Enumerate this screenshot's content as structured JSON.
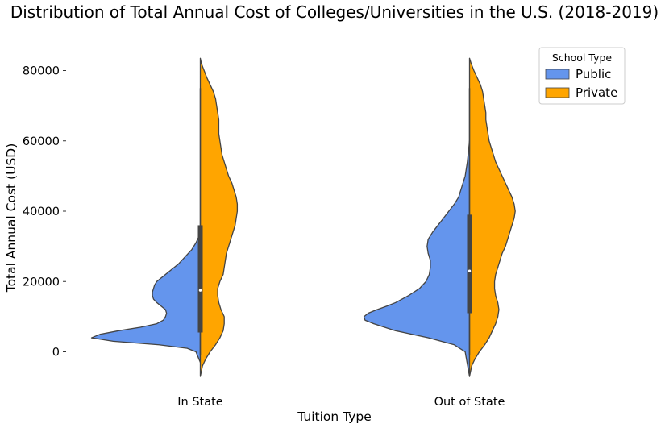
{
  "chart_data": {
    "type": "violin",
    "title": "Distribution of Total Annual Cost of Colleges/Universities in the U.S. (2018-2019)",
    "xlabel": "Tuition Type",
    "ylabel": "Total Annual Cost (USD)",
    "ylim": [
      -10000,
      85000
    ],
    "yticks": [
      0,
      20000,
      40000,
      60000,
      80000
    ],
    "ytick_labels": [
      "0",
      "20000",
      "40000",
      "60000",
      "80000"
    ],
    "categories": [
      "In State",
      "Out of State"
    ],
    "split": true,
    "grid": false,
    "legend": {
      "title": "School Type",
      "position": "top-right"
    },
    "series": [
      {
        "name": "Public",
        "color": "#6495ED",
        "side": "left"
      },
      {
        "name": "Private",
        "color": "#FFA500",
        "side": "right"
      }
    ],
    "densities": [
      {
        "category": "In State",
        "public": [
          [
            -3000,
            0
          ],
          [
            0,
            0.04
          ],
          [
            1000,
            0.12
          ],
          [
            2000,
            0.38
          ],
          [
            3000,
            0.8
          ],
          [
            4000,
            1.0
          ],
          [
            5000,
            0.92
          ],
          [
            6000,
            0.75
          ],
          [
            7000,
            0.55
          ],
          [
            8000,
            0.4
          ],
          [
            9000,
            0.34
          ],
          [
            10000,
            0.32
          ],
          [
            11000,
            0.31
          ],
          [
            12000,
            0.32
          ],
          [
            13000,
            0.36
          ],
          [
            14000,
            0.4
          ],
          [
            15000,
            0.43
          ],
          [
            16000,
            0.44
          ],
          [
            17000,
            0.44
          ],
          [
            18000,
            0.43
          ],
          [
            19000,
            0.42
          ],
          [
            20000,
            0.4
          ],
          [
            21000,
            0.36
          ],
          [
            22000,
            0.32
          ],
          [
            23000,
            0.28
          ],
          [
            24000,
            0.24
          ],
          [
            25000,
            0.2
          ],
          [
            26000,
            0.17
          ],
          [
            27000,
            0.14
          ],
          [
            28000,
            0.11
          ],
          [
            29000,
            0.08
          ],
          [
            30000,
            0.06
          ],
          [
            31000,
            0.04
          ],
          [
            32000,
            0.025
          ],
          [
            33000,
            0.01
          ],
          [
            34000,
            0
          ]
        ],
        "private": [
          [
            -7000,
            0
          ],
          [
            -4000,
            0.02
          ],
          [
            -2000,
            0.05
          ],
          [
            0,
            0.09
          ],
          [
            2000,
            0.14
          ],
          [
            4000,
            0.18
          ],
          [
            6000,
            0.21
          ],
          [
            8000,
            0.22
          ],
          [
            10000,
            0.22
          ],
          [
            12000,
            0.19
          ],
          [
            14000,
            0.17
          ],
          [
            16000,
            0.16
          ],
          [
            18000,
            0.16
          ],
          [
            20000,
            0.18
          ],
          [
            22000,
            0.21
          ],
          [
            24000,
            0.22
          ],
          [
            26000,
            0.23
          ],
          [
            28000,
            0.24
          ],
          [
            30000,
            0.26
          ],
          [
            32000,
            0.28
          ],
          [
            34000,
            0.3
          ],
          [
            36000,
            0.32
          ],
          [
            38000,
            0.33
          ],
          [
            40000,
            0.34
          ],
          [
            42000,
            0.34
          ],
          [
            44000,
            0.33
          ],
          [
            46000,
            0.31
          ],
          [
            48000,
            0.29
          ],
          [
            50000,
            0.26
          ],
          [
            52000,
            0.24
          ],
          [
            54000,
            0.22
          ],
          [
            56000,
            0.2
          ],
          [
            58000,
            0.19
          ],
          [
            60000,
            0.18
          ],
          [
            62000,
            0.17
          ],
          [
            64000,
            0.17
          ],
          [
            66000,
            0.17
          ],
          [
            68000,
            0.16
          ],
          [
            70000,
            0.15
          ],
          [
            72000,
            0.14
          ],
          [
            74000,
            0.12
          ],
          [
            76000,
            0.09
          ],
          [
            78000,
            0.06
          ],
          [
            80000,
            0.035
          ],
          [
            82000,
            0.01
          ],
          [
            83500,
            0
          ]
        ],
        "box": {
          "q1": 5500,
          "median": 17500,
          "q3": 36000,
          "whisker_low": -1000,
          "whisker_high": 75000
        }
      },
      {
        "category": "Out of State",
        "public": [
          [
            -7000,
            0
          ],
          [
            0,
            0.04
          ],
          [
            2000,
            0.14
          ],
          [
            4000,
            0.38
          ],
          [
            6000,
            0.68
          ],
          [
            8000,
            0.88
          ],
          [
            9000,
            0.96
          ],
          [
            10000,
            0.97
          ],
          [
            11000,
            0.93
          ],
          [
            12000,
            0.85
          ],
          [
            13000,
            0.76
          ],
          [
            14000,
            0.68
          ],
          [
            16000,
            0.56
          ],
          [
            18000,
            0.46
          ],
          [
            20000,
            0.4
          ],
          [
            22000,
            0.37
          ],
          [
            24000,
            0.36
          ],
          [
            26000,
            0.36
          ],
          [
            28000,
            0.38
          ],
          [
            30000,
            0.39
          ],
          [
            32000,
            0.38
          ],
          [
            34000,
            0.34
          ],
          [
            36000,
            0.29
          ],
          [
            38000,
            0.24
          ],
          [
            40000,
            0.19
          ],
          [
            42000,
            0.14
          ],
          [
            44000,
            0.1
          ],
          [
            46000,
            0.08
          ],
          [
            48000,
            0.06
          ],
          [
            50000,
            0.04
          ],
          [
            52000,
            0.03
          ],
          [
            54000,
            0.02
          ],
          [
            57000,
            0.01
          ],
          [
            60000,
            0
          ]
        ],
        "private": [
          [
            -7000,
            0
          ],
          [
            -4000,
            0.02
          ],
          [
            -2000,
            0.05
          ],
          [
            0,
            0.09
          ],
          [
            2000,
            0.14
          ],
          [
            4000,
            0.18
          ],
          [
            6000,
            0.21
          ],
          [
            8000,
            0.24
          ],
          [
            10000,
            0.26
          ],
          [
            12000,
            0.27
          ],
          [
            14000,
            0.26
          ],
          [
            16000,
            0.24
          ],
          [
            18000,
            0.23
          ],
          [
            20000,
            0.23
          ],
          [
            22000,
            0.24
          ],
          [
            24000,
            0.26
          ],
          [
            26000,
            0.28
          ],
          [
            28000,
            0.3
          ],
          [
            30000,
            0.33
          ],
          [
            32000,
            0.35
          ],
          [
            34000,
            0.37
          ],
          [
            36000,
            0.39
          ],
          [
            38000,
            0.41
          ],
          [
            40000,
            0.42
          ],
          [
            42000,
            0.41
          ],
          [
            44000,
            0.39
          ],
          [
            46000,
            0.36
          ],
          [
            48000,
            0.33
          ],
          [
            50000,
            0.3
          ],
          [
            52000,
            0.27
          ],
          [
            54000,
            0.24
          ],
          [
            56000,
            0.22
          ],
          [
            58000,
            0.2
          ],
          [
            60000,
            0.18
          ],
          [
            62000,
            0.17
          ],
          [
            64000,
            0.16
          ],
          [
            66000,
            0.15
          ],
          [
            68000,
            0.15
          ],
          [
            70000,
            0.14
          ],
          [
            72000,
            0.13
          ],
          [
            74000,
            0.12
          ],
          [
            76000,
            0.1
          ],
          [
            78000,
            0.07
          ],
          [
            80000,
            0.04
          ],
          [
            82000,
            0.015
          ],
          [
            83500,
            0
          ]
        ],
        "box": {
          "q1": 11000,
          "median": 23000,
          "q3": 39000,
          "whisker_low": -1000,
          "whisker_high": 75000
        }
      }
    ]
  }
}
